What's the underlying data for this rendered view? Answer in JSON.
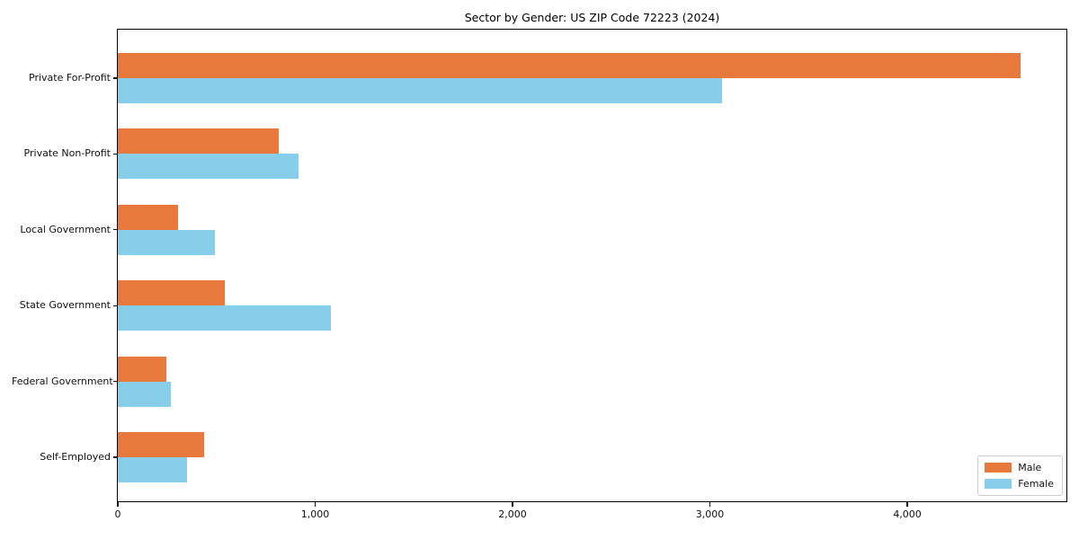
{
  "chart_data": {
    "type": "bar",
    "orientation": "horizontal",
    "title": "Sector by Gender: US ZIP Code 72223 (2024)",
    "categories": [
      "Private For-Profit",
      "Private Non-Profit",
      "Local Government",
      "State Government",
      "Federal Government",
      "Self-Employed"
    ],
    "series": [
      {
        "name": "Male",
        "color": "#e8793c",
        "values": [
          4575,
          815,
          305,
          540,
          245,
          435
        ]
      },
      {
        "name": "Female",
        "color": "#87ceeb",
        "values": [
          3060,
          915,
          490,
          1080,
          270,
          350
        ]
      }
    ],
    "xlabel": "",
    "ylabel": "",
    "xlim": [
      0,
      4806
    ],
    "xticks": {
      "values": [
        0,
        1000,
        2000,
        3000,
        4000
      ],
      "labels": [
        "0",
        "1,000",
        "2,000",
        "3,000",
        "4,000"
      ]
    },
    "grid": false,
    "legend_position": "lower right"
  }
}
